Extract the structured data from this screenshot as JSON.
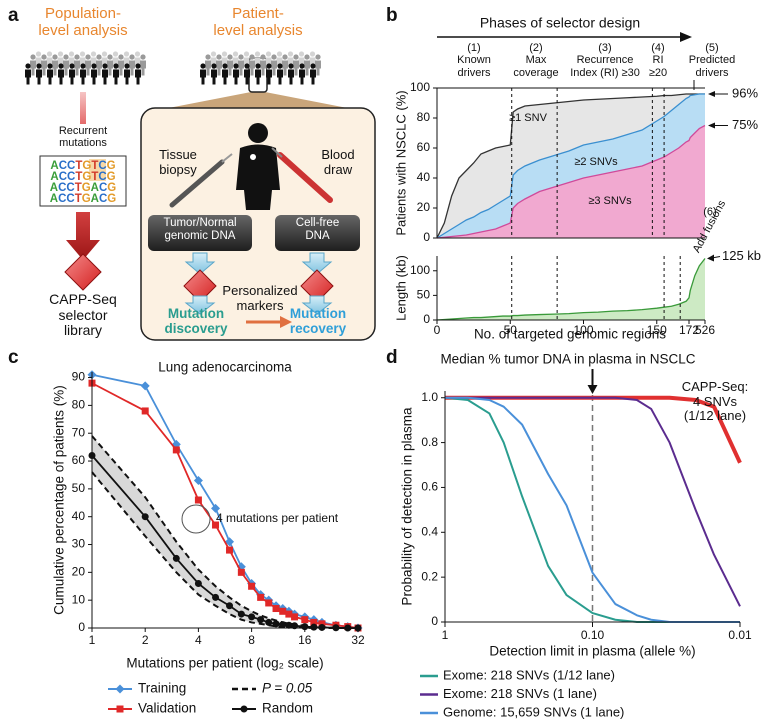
{
  "panel_a": {
    "label": "a",
    "population_title": "Population-\nlevel analysis",
    "patient_title": "Patient-\nlevel analysis",
    "recurrent_label": "Recurrent\nmutations",
    "sequences": [
      "ACCTGTCG",
      "ACCTGTCG",
      "ACCTGACG",
      "ACCTGACG"
    ],
    "selector_label": "CAPP-Seq\nselector\nlibrary",
    "tissue_label": "Tissue\nbiopsy",
    "blood_label": "Blood\ndraw",
    "tumor_box": "Tumor/Normal\ngenomic DNA",
    "cfdna_box": "Cell-free\nDNA",
    "markers_label": "Personalized\nmarkers",
    "discovery_label": "Mutation\ndiscovery",
    "recovery_label": "Mutation\nrecovery"
  },
  "chart_data": [
    {
      "type": "area",
      "panel_label": "b",
      "title": "Phases of selector design",
      "phases": [
        "(1)\nKnown\ndrivers",
        "(2)\nMax\ncoverage",
        "(3)\nRecurrence\nIndex (RI) ≥30",
        "(4)\nRI\n≥20",
        "(5)\nPredicted\ndrivers"
      ],
      "ylabel": "Patients with NSCLC (%)",
      "x": [
        0,
        5,
        10,
        15,
        20,
        25,
        30,
        35,
        40,
        45,
        50,
        52,
        55,
        60,
        70,
        80,
        90,
        100,
        110,
        120,
        130,
        140,
        150,
        155,
        160,
        165,
        170,
        172,
        200,
        300,
        400,
        526
      ],
      "xlim": [
        0,
        526
      ],
      "ylim": [
        0,
        100
      ],
      "yticks": [
        0,
        20,
        40,
        60,
        80,
        100
      ],
      "phase_boundaries": [
        51,
        82,
        147,
        155
      ],
      "series": [
        {
          "name": "≥1 SNV",
          "color": "#333333",
          "fill": "#e6e6e6",
          "values": [
            0,
            10,
            28,
            40,
            45,
            50,
            56,
            58,
            60,
            61,
            62,
            84,
            86,
            88,
            89,
            90,
            91,
            92,
            92.5,
            93,
            93.5,
            94,
            94.5,
            95,
            95,
            95.5,
            96,
            96,
            96,
            96,
            96,
            96
          ]
        },
        {
          "name": "≥2 SNVs",
          "color": "#3a8fd0",
          "fill": "#b8ddf4",
          "values": [
            0,
            3,
            6,
            9,
            12,
            14,
            17,
            19,
            22,
            25,
            28,
            42,
            45,
            48,
            52,
            55,
            58,
            62,
            64,
            66,
            69,
            72,
            78,
            81,
            85,
            89,
            93,
            94,
            95,
            95.5,
            96,
            96
          ]
        },
        {
          "name": "≥3 SNVs",
          "color": "#d04a9a",
          "fill": "#f1a9d0",
          "values": [
            0,
            0.5,
            1,
            1.5,
            2,
            3,
            4,
            5,
            6,
            8,
            10,
            20,
            23,
            26,
            31,
            34,
            37,
            40,
            42,
            44,
            46,
            48,
            52,
            54,
            57,
            60,
            64,
            65,
            67,
            70,
            73,
            75
          ]
        }
      ],
      "annotations": [
        {
          "text": "96%",
          "value": 96
        },
        {
          "text": "75%",
          "value": 75
        }
      ]
    },
    {
      "type": "area",
      "ylabel": "Length (kb)",
      "xlabel": "No. of targeted genomic regions",
      "x": [
        0,
        5,
        10,
        15,
        20,
        25,
        30,
        35,
        40,
        45,
        50,
        52,
        55,
        60,
        70,
        80,
        90,
        100,
        110,
        120,
        130,
        140,
        150,
        155,
        160,
        165,
        170,
        172,
        200,
        300,
        400,
        526
      ],
      "values": [
        0,
        1,
        2,
        3,
        4,
        5,
        5,
        6,
        7,
        8,
        8,
        9,
        9,
        10,
        11,
        12,
        13,
        15,
        16,
        18,
        19,
        21,
        24,
        26,
        28,
        32,
        38,
        45,
        60,
        90,
        110,
        125
      ],
      "color": "#3a9a3a",
      "fill": "#cdeac4",
      "xlim": [
        0,
        526
      ],
      "xticks": [
        0,
        50,
        100,
        150,
        172,
        526
      ],
      "ylim": [
        0,
        130
      ],
      "yticks": [
        0,
        50,
        100
      ],
      "phase_boundaries": [
        51,
        82,
        155,
        166
      ],
      "phase6_number": "(6)",
      "phase6_label": "Add fusions",
      "annotation": {
        "text": "125 kb",
        "value": 125
      }
    },
    {
      "type": "line",
      "panel_label": "c",
      "title": "Lung adenocarcinoma",
      "xlabel": "Mutations per patient (log₂ scale)",
      "ylabel": "Cumulative percentage of patients (%)",
      "x": [
        1,
        2,
        3,
        4,
        5,
        6,
        7,
        8,
        9,
        10,
        11,
        12,
        13,
        14,
        16,
        18,
        20,
        24,
        28,
        32
      ],
      "xscale": "log2",
      "xlim": [
        1,
        32
      ],
      "xticks": [
        1,
        2,
        4,
        8,
        16,
        32
      ],
      "ylim": [
        0,
        92
      ],
      "yticks": [
        0,
        10,
        20,
        30,
        40,
        50,
        60,
        70,
        80,
        90
      ],
      "annotation": "4 mutations per patient",
      "series": [
        {
          "name": "Training",
          "color": "#4a90d9",
          "marker": "diamond",
          "values": [
            91,
            87,
            66,
            53,
            43,
            31,
            22,
            16,
            12,
            10,
            8,
            7,
            6,
            5,
            4,
            3,
            2,
            1,
            0.5,
            0
          ]
        },
        {
          "name": "Validation",
          "color": "#e02828",
          "marker": "square",
          "values": [
            88,
            78,
            64,
            46,
            37,
            28,
            20,
            15,
            11,
            9,
            7,
            6,
            5,
            4,
            3,
            2,
            1.5,
            1,
            0.5,
            0
          ]
        },
        {
          "name": "P = 0.05",
          "color": "#111111",
          "dash": true,
          "band": "#d9d9d9",
          "upper": [
            69,
            47,
            31,
            21,
            15,
            11,
            8,
            6,
            4.5,
            3.5,
            2.7,
            2,
            1.6,
            1.3,
            0.8,
            0.5,
            0.3,
            0.1,
            0,
            0
          ],
          "lower": [
            56,
            33,
            20,
            12,
            8,
            5,
            3,
            2,
            1.5,
            1,
            0.6,
            0.4,
            0.3,
            0.2,
            0.1,
            0,
            0,
            0,
            0,
            0
          ]
        },
        {
          "name": "Random",
          "color": "#111111",
          "marker": "circle",
          "values": [
            62,
            40,
            25,
            16,
            11,
            8,
            5,
            4,
            3,
            2,
            1.5,
            1.2,
            1,
            0.8,
            0.5,
            0.3,
            0.2,
            0.1,
            0,
            0
          ]
        }
      ]
    },
    {
      "type": "line",
      "panel_label": "d",
      "title": "Median % tumor DNA in plasma in NSCLC",
      "xlabel": "Detection limit in plasma (allele %)",
      "ylabel": "Probability of detection in plasma",
      "x": [
        1,
        0.7,
        0.5,
        0.4,
        0.3,
        0.2,
        0.15,
        0.1,
        0.07,
        0.05,
        0.04,
        0.03,
        0.02,
        0.015,
        0.01
      ],
      "xscale": "log10",
      "xlim": [
        1,
        0.01
      ],
      "xticks": [
        1,
        {
          "value": 0.1,
          "label": "0.10"
        },
        0.01
      ],
      "ylim": [
        0,
        1.03
      ],
      "yticks": [
        0,
        0.2,
        0.4,
        0.6,
        0.8,
        {
          "value": 1,
          "label": "1.0"
        }
      ],
      "median_marker": 0.1,
      "series": [
        {
          "name": "CAPP-Seq:\n4 SNVs\n(1/12 lane)",
          "color": "#e03030",
          "width": 4,
          "show_in_legend": false,
          "values": [
            1,
            1,
            1,
            1,
            1,
            1,
            1,
            1,
            1,
            1,
            1,
            1,
            0.99,
            0.96,
            0.71
          ]
        },
        {
          "name": "Exome: 218 SNVs (1/12 lane)",
          "color": "#2a9d8f",
          "width": 2,
          "values": [
            1,
            0.99,
            0.93,
            0.8,
            0.56,
            0.25,
            0.12,
            0.04,
            0.01,
            0,
            0,
            0,
            0,
            0,
            0
          ]
        },
        {
          "name": "Exome: 218 SNVs (1 lane)",
          "color": "#5b2c8f",
          "width": 2,
          "values": [
            1,
            1,
            1,
            1,
            1,
            1,
            1,
            1,
            1,
            0.99,
            0.95,
            0.8,
            0.5,
            0.3,
            0.07
          ]
        },
        {
          "name": "Genome: 15,659 SNVs (1 lane)",
          "color": "#4a90d9",
          "width": 2,
          "values": [
            1,
            1,
            0.99,
            0.96,
            0.88,
            0.66,
            0.52,
            0.22,
            0.08,
            0.03,
            0.01,
            0,
            0,
            0,
            0
          ]
        }
      ]
    }
  ]
}
